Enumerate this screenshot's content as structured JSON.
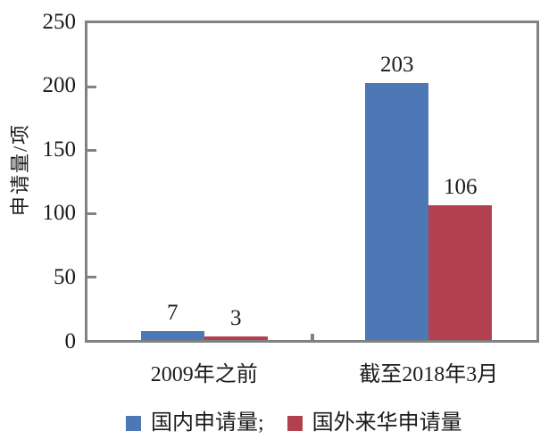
{
  "chart_data": {
    "type": "bar",
    "title": "",
    "ylabel": "申请量/项",
    "xlabel": "",
    "categories": [
      "2009年之前",
      "截至2018年3月"
    ],
    "series": [
      {
        "name": "国内申请量",
        "color": "#4E78B5",
        "values": [
          7,
          203
        ]
      },
      {
        "name": "国外来华申请量",
        "color": "#B3404E",
        "values": [
          3,
          106
        ]
      }
    ],
    "legend_labels": [
      "国内申请量;",
      "国外来华申请量"
    ],
    "data_labels_shown": true,
    "y_ticks": [
      0,
      50,
      100,
      150,
      200,
      250
    ],
    "ylim": [
      0,
      250
    ],
    "grid": false,
    "legend_position": "bottom",
    "axis_color": "#7F8184",
    "text_color": "#1B1B1B",
    "background_color": "#FFFFFF"
  }
}
